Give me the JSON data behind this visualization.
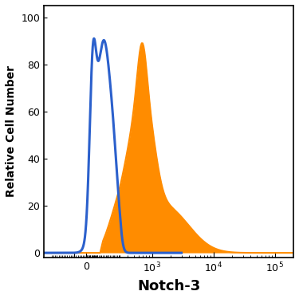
{
  "title": "",
  "xlabel": "Notch-3",
  "ylabel": "Relative Cell Number",
  "ylim": [
    -2,
    105
  ],
  "yticks": [
    0,
    20,
    40,
    60,
    80,
    100
  ],
  "xlabel_fontsize": 13,
  "ylabel_fontsize": 10,
  "tick_fontsize": 9,
  "blue_color": "#2B60CC",
  "orange_color": "#FF8C00",
  "background_color": "#FFFFFF",
  "blue_linewidth": 2.2,
  "orange_linewidth": 1.5,
  "linthresh": 300,
  "linscale": 0.5
}
